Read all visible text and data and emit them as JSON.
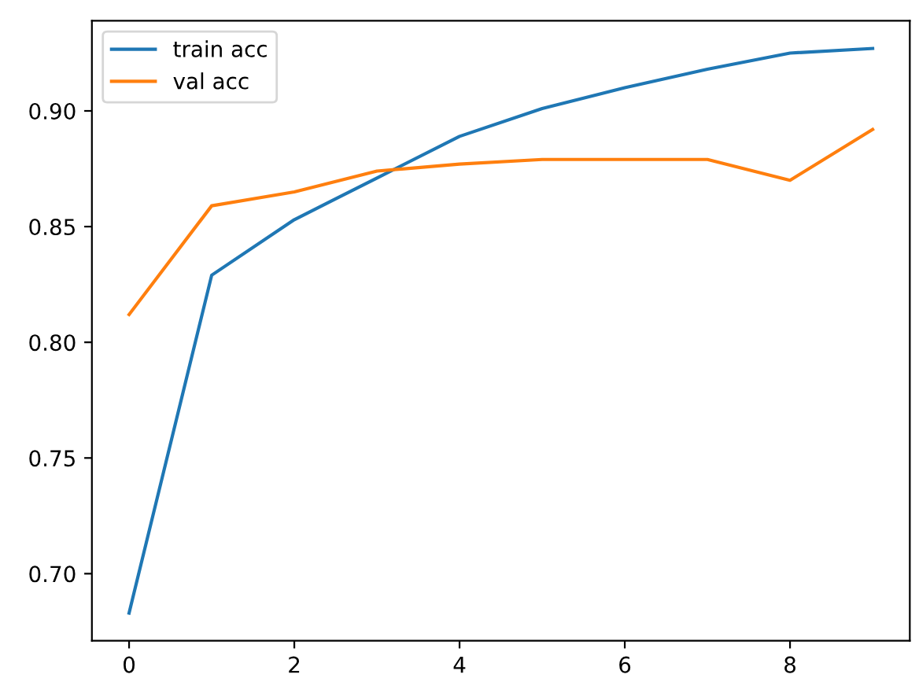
{
  "chart_data": {
    "type": "line",
    "x": [
      0,
      1,
      2,
      3,
      4,
      5,
      6,
      7,
      8,
      9
    ],
    "series": [
      {
        "name": "train acc",
        "color": "#1f77b4",
        "values": [
          0.683,
          0.829,
          0.853,
          0.871,
          0.889,
          0.901,
          0.91,
          0.918,
          0.925,
          0.927
        ]
      },
      {
        "name": "val acc",
        "color": "#ff7f0e",
        "values": [
          0.812,
          0.859,
          0.865,
          0.874,
          0.877,
          0.879,
          0.879,
          0.879,
          0.87,
          0.892
        ]
      }
    ],
    "xlim": [
      -0.45,
      9.45
    ],
    "ylim": [
      0.671,
      0.939
    ],
    "xticks": [
      0,
      2,
      4,
      6,
      8
    ],
    "yticks": [
      {
        "value": 0.7,
        "label": "0.70"
      },
      {
        "value": 0.75,
        "label": "0.75"
      },
      {
        "value": 0.8,
        "label": "0.80"
      },
      {
        "value": 0.85,
        "label": "0.85"
      },
      {
        "value": 0.9,
        "label": "0.90"
      }
    ],
    "legend": "top left",
    "grid": false,
    "marker": "none",
    "line_style": "solid"
  }
}
